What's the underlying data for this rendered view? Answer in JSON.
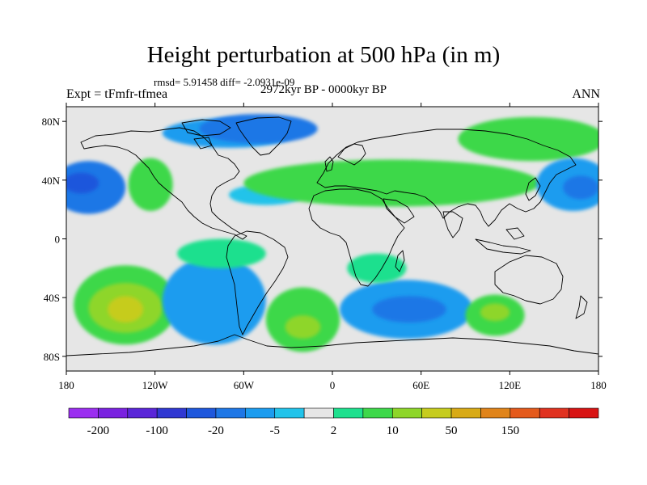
{
  "title": "Height perturbation at 500 hPa (in m)",
  "rmsd_line": "rmsd= 5.91458 diff= -2.0931e-09",
  "expt_label": "Expt = tFmfr-tfmea",
  "period_label": "2972kyr BP - 0000kyr BP",
  "season_label": "ANN",
  "axes": {
    "lat_ticks": [
      "80N",
      "40N",
      "0",
      "40S",
      "80S"
    ],
    "lat_values": [
      80,
      40,
      0,
      -40,
      -80
    ],
    "lon_ticks": [
      "180",
      "120W",
      "60W",
      "0",
      "60E",
      "120E",
      "180"
    ],
    "lon_values": [
      -180,
      -120,
      -60,
      0,
      60,
      120,
      180
    ],
    "lat_range": [
      -90,
      90
    ],
    "lon_range": [
      -180,
      180
    ]
  },
  "colorbar": {
    "colors": [
      "#9b2ff0",
      "#7a22e0",
      "#5a26d8",
      "#3038d2",
      "#1e57dc",
      "#1e77e6",
      "#1c9cef",
      "#22c3ea",
      "#e6e6e6",
      "#1ee08e",
      "#3ed84a",
      "#8ed62a",
      "#c6cc1e",
      "#d8aa16",
      "#e0841a",
      "#e45a1c",
      "#e03220",
      "#d81414"
    ],
    "labels": [
      "-200",
      "-100",
      "-20",
      "-5",
      "2",
      "10",
      "50",
      "150"
    ]
  },
  "anomalies": [
    {
      "lon": -70,
      "lat": 72,
      "rx": 45,
      "ry": 10,
      "level": 6
    },
    {
      "lon": -50,
      "lat": 75,
      "rx": 40,
      "ry": 10,
      "level": 5
    },
    {
      "lon": -165,
      "lat": 35,
      "rx": 25,
      "ry": 18,
      "level": 5
    },
    {
      "lon": -170,
      "lat": 38,
      "rx": 12,
      "ry": 7,
      "level": 4
    },
    {
      "lon": -123,
      "lat": 37,
      "rx": 15,
      "ry": 18,
      "level": 10
    },
    {
      "lon": -45,
      "lat": 30,
      "rx": 25,
      "ry": 7,
      "level": 7
    },
    {
      "lon": 40,
      "lat": 38,
      "rx": 100,
      "ry": 16,
      "level": 10
    },
    {
      "lon": 135,
      "lat": 68,
      "rx": 50,
      "ry": 15,
      "level": 10
    },
    {
      "lon": 163,
      "lat": 37,
      "rx": 25,
      "ry": 18,
      "level": 6
    },
    {
      "lon": 168,
      "lat": 35,
      "rx": 12,
      "ry": 8,
      "level": 5
    },
    {
      "lon": -140,
      "lat": -45,
      "rx": 35,
      "ry": 27,
      "level": 10
    },
    {
      "lon": -140,
      "lat": -47,
      "rx": 25,
      "ry": 17,
      "level": 11
    },
    {
      "lon": -140,
      "lat": -48,
      "rx": 12,
      "ry": 9,
      "level": 12
    },
    {
      "lon": -80,
      "lat": -42,
      "rx": 35,
      "ry": 30,
      "level": 6
    },
    {
      "lon": -20,
      "lat": -55,
      "rx": 25,
      "ry": 22,
      "level": 10
    },
    {
      "lon": -20,
      "lat": -60,
      "rx": 12,
      "ry": 8,
      "level": 11
    },
    {
      "lon": 50,
      "lat": -48,
      "rx": 45,
      "ry": 20,
      "level": 6
    },
    {
      "lon": 52,
      "lat": -48,
      "rx": 25,
      "ry": 9,
      "level": 5
    },
    {
      "lon": 110,
      "lat": -52,
      "rx": 20,
      "ry": 14,
      "level": 10
    },
    {
      "lon": 110,
      "lat": -50,
      "rx": 10,
      "ry": 6,
      "level": 11
    },
    {
      "lon": 30,
      "lat": -20,
      "rx": 20,
      "ry": 10,
      "level": 9
    },
    {
      "lon": -75,
      "lat": -10,
      "rx": 30,
      "ry": 10,
      "level": 9
    }
  ]
}
